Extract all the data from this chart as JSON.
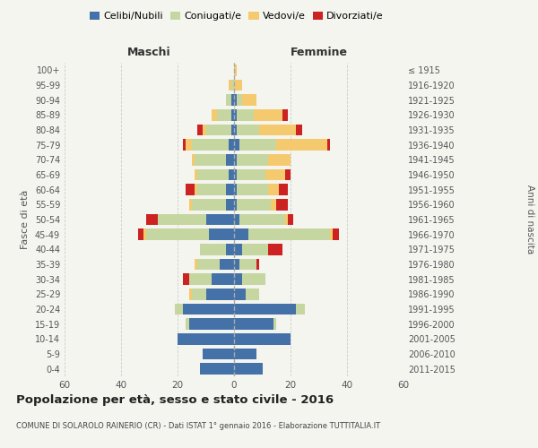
{
  "age_groups": [
    "0-4",
    "5-9",
    "10-14",
    "15-19",
    "20-24",
    "25-29",
    "30-34",
    "35-39",
    "40-44",
    "45-49",
    "50-54",
    "55-59",
    "60-64",
    "65-69",
    "70-74",
    "75-79",
    "80-84",
    "85-89",
    "90-94",
    "95-99",
    "100+"
  ],
  "birth_years": [
    "2011-2015",
    "2006-2010",
    "2001-2005",
    "1996-2000",
    "1991-1995",
    "1986-1990",
    "1981-1985",
    "1976-1980",
    "1971-1975",
    "1966-1970",
    "1961-1965",
    "1956-1960",
    "1951-1955",
    "1946-1950",
    "1941-1945",
    "1936-1940",
    "1931-1935",
    "1926-1930",
    "1921-1925",
    "1916-1920",
    "≤ 1915"
  ],
  "maschi": {
    "celibi": [
      12,
      11,
      20,
      16,
      18,
      10,
      8,
      5,
      3,
      9,
      10,
      3,
      3,
      2,
      3,
      2,
      1,
      1,
      1,
      0,
      0
    ],
    "coniugati": [
      0,
      0,
      0,
      1,
      3,
      5,
      8,
      8,
      9,
      22,
      17,
      12,
      10,
      11,
      11,
      13,
      9,
      5,
      2,
      1,
      0
    ],
    "vedove": [
      0,
      0,
      0,
      0,
      0,
      1,
      0,
      1,
      0,
      1,
      0,
      1,
      1,
      1,
      1,
      2,
      1,
      2,
      0,
      1,
      0
    ],
    "divorziate": [
      0,
      0,
      0,
      0,
      0,
      0,
      2,
      0,
      0,
      2,
      4,
      0,
      3,
      0,
      0,
      1,
      2,
      0,
      0,
      0,
      0
    ]
  },
  "femmine": {
    "nubili": [
      10,
      8,
      20,
      14,
      22,
      4,
      3,
      2,
      3,
      5,
      2,
      1,
      1,
      1,
      1,
      2,
      1,
      1,
      1,
      0,
      0
    ],
    "coniugate": [
      0,
      0,
      0,
      1,
      3,
      5,
      8,
      6,
      9,
      29,
      16,
      12,
      11,
      10,
      11,
      13,
      8,
      6,
      2,
      0,
      0
    ],
    "vedove": [
      0,
      0,
      0,
      0,
      0,
      0,
      0,
      0,
      0,
      1,
      1,
      2,
      4,
      7,
      8,
      18,
      13,
      10,
      5,
      3,
      1
    ],
    "divorziate": [
      0,
      0,
      0,
      0,
      0,
      0,
      0,
      1,
      5,
      2,
      2,
      4,
      3,
      2,
      0,
      1,
      2,
      2,
      0,
      0,
      0
    ]
  },
  "colors": {
    "celibi": "#4472a8",
    "coniugati": "#c5d6a0",
    "vedove": "#f5c96e",
    "divorziate": "#cc2222"
  },
  "title": "Popolazione per età, sesso e stato civile - 2016",
  "subtitle": "COMUNE DI SOLAROLO RAINERIO (CR) - Dati ISTAT 1° gennaio 2016 - Elaborazione TUTTITALIA.IT",
  "xlabel_left": "Maschi",
  "xlabel_right": "Femmine",
  "ylabel_left": "Fasce di età",
  "ylabel_right": "Anni di nascita",
  "xlim": 60,
  "bg_color": "#f5f5f0",
  "grid_color": "#cccccc"
}
